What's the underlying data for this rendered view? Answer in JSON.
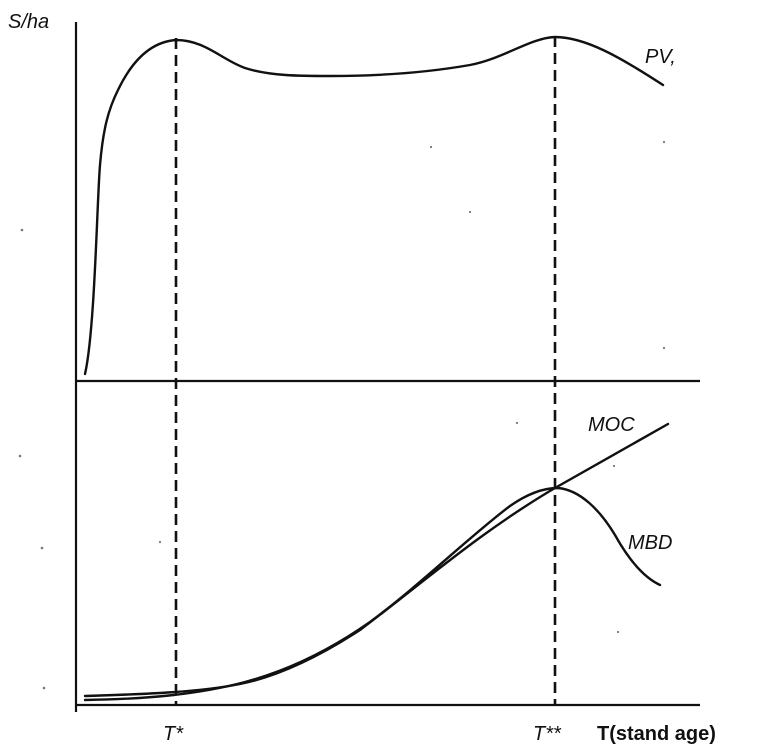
{
  "diagram": {
    "y_axis_label": "S/ha",
    "x_axis_label": "T(stand age)",
    "tick_labels": {
      "t_star": "T*",
      "t_double_star": "T**"
    },
    "curves": {
      "pv": "PV,",
      "moc": "MOC",
      "mbd": "MBD"
    }
  }
}
